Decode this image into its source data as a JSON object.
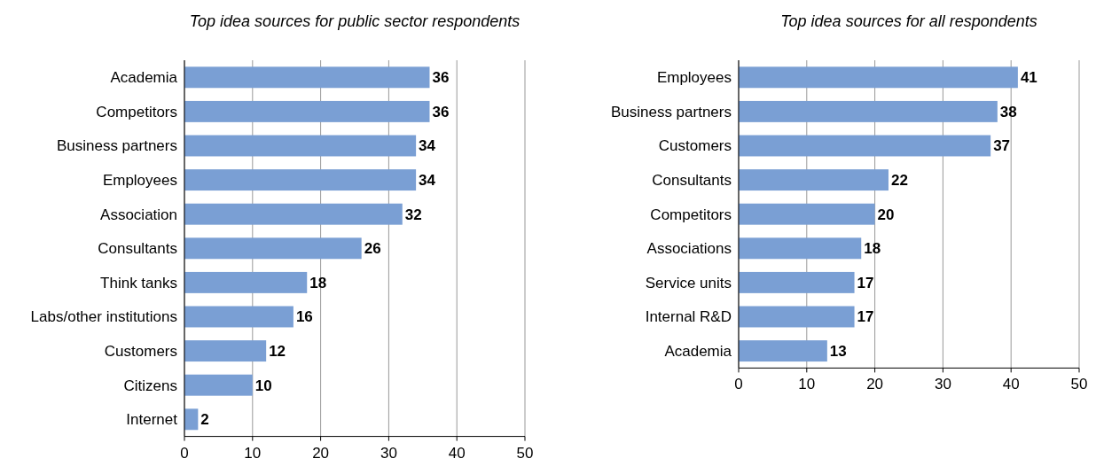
{
  "chart_data": [
    {
      "type": "bar",
      "orientation": "horizontal",
      "title": "Top idea sources for public sector respondents",
      "categories": [
        "Academia",
        "Competitors",
        "Business partners",
        "Employees",
        "Association",
        "Consultants",
        "Think tanks",
        "Labs/other institutions",
        "Customers",
        "Citizens",
        "Internet"
      ],
      "values": [
        36,
        36,
        34,
        34,
        32,
        26,
        18,
        16,
        12,
        10,
        2
      ],
      "color": "#7a9fd4",
      "xlim": [
        0,
        50
      ],
      "xticks": [
        0,
        10,
        20,
        30,
        40,
        50
      ],
      "grid": "x",
      "data_labels": true
    },
    {
      "type": "bar",
      "orientation": "horizontal",
      "title": "Top idea sources for all respondents",
      "categories": [
        "Employees",
        "Business partners",
        "Customers",
        "Consultants",
        "Competitors",
        "Associations",
        "Service units",
        "Internal R&D",
        "Academia"
      ],
      "values": [
        41,
        38,
        37,
        22,
        20,
        18,
        17,
        17,
        13
      ],
      "color": "#7a9fd4",
      "xlim": [
        0,
        50
      ],
      "xticks": [
        0,
        10,
        20,
        30,
        40,
        50
      ],
      "grid": "x",
      "data_labels": true
    }
  ]
}
